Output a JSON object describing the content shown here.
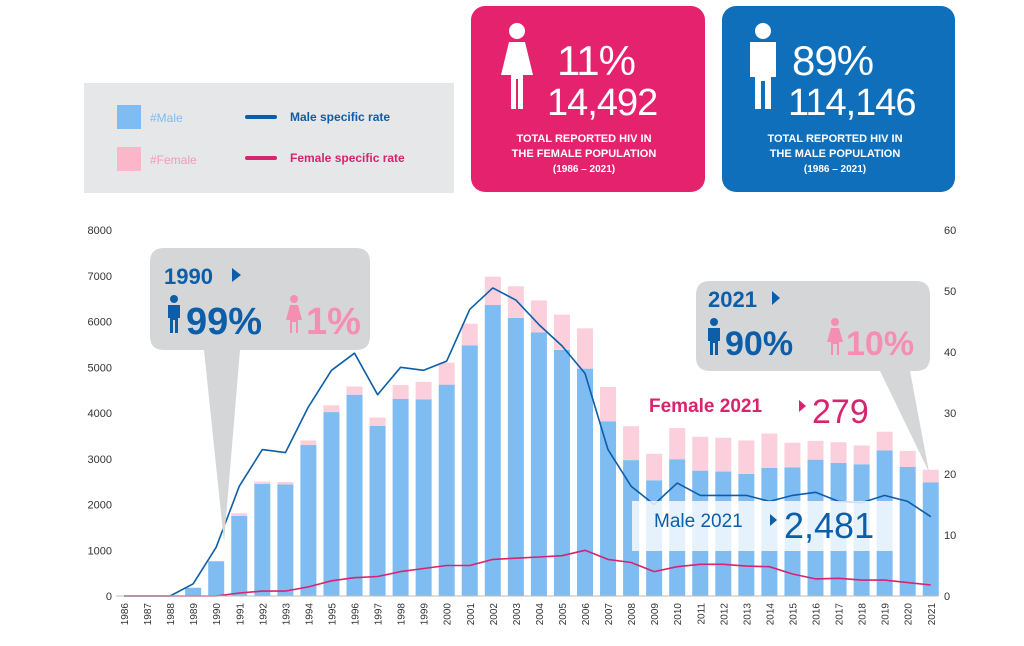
{
  "legend": {
    "male_bar": "#Male",
    "female_bar": "#Female",
    "male_rate": "Male specific rate",
    "female_rate": "Female specific rate"
  },
  "female_card": {
    "percent": "11%",
    "count": "14,492",
    "caption": "TOTAL REPORTED HIV IN\nTHE FEMALE POPULATION",
    "years": "(1986 – 2021)",
    "color": "#e5226e"
  },
  "male_card": {
    "percent": "89%",
    "count": "114,146",
    "caption": "TOTAL REPORTED HIV IN\nTHE MALE POPULATION",
    "years": "(1986 – 2021)",
    "color": "#0f6fba"
  },
  "callout_1990": {
    "year": "1990",
    "male_pct": "99%",
    "female_pct": "1%"
  },
  "callout_2021": {
    "year": "2021",
    "male_pct": "90%",
    "female_pct": "10%"
  },
  "female_2021": {
    "label": "Female 2021",
    "value": "279"
  },
  "male_2021": {
    "label": "Male 2021",
    "value": "2,481"
  },
  "colors": {
    "male_bar": "#7fbcf2",
    "female_bar": "#fbcfdc",
    "male_line": "#0d5ea8",
    "female_line": "#d6246e",
    "callout_bg": "#d5d6d8",
    "axis_text": "#333333"
  },
  "chart_data": {
    "type": "bar",
    "categories": [
      "1986",
      "1987",
      "1988",
      "1989",
      "1990",
      "1991",
      "1992",
      "1993",
      "1994",
      "1995",
      "1996",
      "1997",
      "1998",
      "1999",
      "2000",
      "2001",
      "2002",
      "2003",
      "2004",
      "2005",
      "2006",
      "2007",
      "2008",
      "2009",
      "2010",
      "2011",
      "2012",
      "2013",
      "2014",
      "2015",
      "2016",
      "2017",
      "2018",
      "2019",
      "2020",
      "2021"
    ],
    "series": [
      {
        "name": "#Male",
        "kind": "bar",
        "axis": "left",
        "stack": true,
        "values": [
          0,
          5,
          10,
          180,
          760,
          1750,
          2450,
          2440,
          3300,
          4020,
          4400,
          3720,
          4310,
          4300,
          4620,
          5480,
          6360,
          6080,
          5760,
          5380,
          4970,
          3820,
          2970,
          2530,
          2990,
          2740,
          2720,
          2670,
          2800,
          2810,
          2980,
          2910,
          2880,
          3180,
          2820,
          2481
        ]
      },
      {
        "name": "#Female",
        "kind": "bar",
        "axis": "left",
        "stack": true,
        "values": [
          0,
          0,
          0,
          2,
          8,
          60,
          50,
          50,
          100,
          150,
          180,
          180,
          300,
          380,
          480,
          470,
          620,
          690,
          700,
          770,
          880,
          750,
          740,
          580,
          680,
          740,
          740,
          730,
          750,
          540,
          410,
          450,
          410,
          410,
          350,
          279
        ]
      },
      {
        "name": "Male specific rate",
        "kind": "line",
        "axis": "right",
        "values": [
          0,
          0,
          0,
          2,
          8,
          18,
          24,
          23.5,
          31,
          37,
          39.8,
          33,
          37.5,
          37,
          38.5,
          47,
          50.5,
          48.5,
          44.5,
          41,
          36.5,
          24,
          18,
          15,
          18.5,
          16.5,
          16.5,
          16.5,
          15.5,
          16.5,
          17,
          15.5,
          15.3,
          16.5,
          15.5,
          13
        ]
      },
      {
        "name": "Female specific rate",
        "kind": "line",
        "axis": "right",
        "values": [
          0,
          0,
          0,
          0,
          0,
          0.5,
          0.8,
          0.8,
          1.5,
          2.5,
          3,
          3.2,
          4,
          4.5,
          5,
          5,
          6,
          6.2,
          6.4,
          6.6,
          7.5,
          6,
          5.5,
          4,
          4.8,
          5.2,
          5.2,
          4.9,
          4.8,
          3.6,
          2.8,
          2.9,
          2.6,
          2.6,
          2.2,
          1.8
        ]
      }
    ],
    "y_left": {
      "range": [
        0,
        8000
      ],
      "ticks": [
        0,
        1000,
        2000,
        3000,
        4000,
        5000,
        6000,
        7000,
        8000
      ]
    },
    "y_right": {
      "range": [
        0,
        60
      ],
      "ticks": [
        0,
        10,
        20,
        30,
        40,
        50,
        60
      ]
    },
    "legend_position": "top-left",
    "grid": false
  }
}
